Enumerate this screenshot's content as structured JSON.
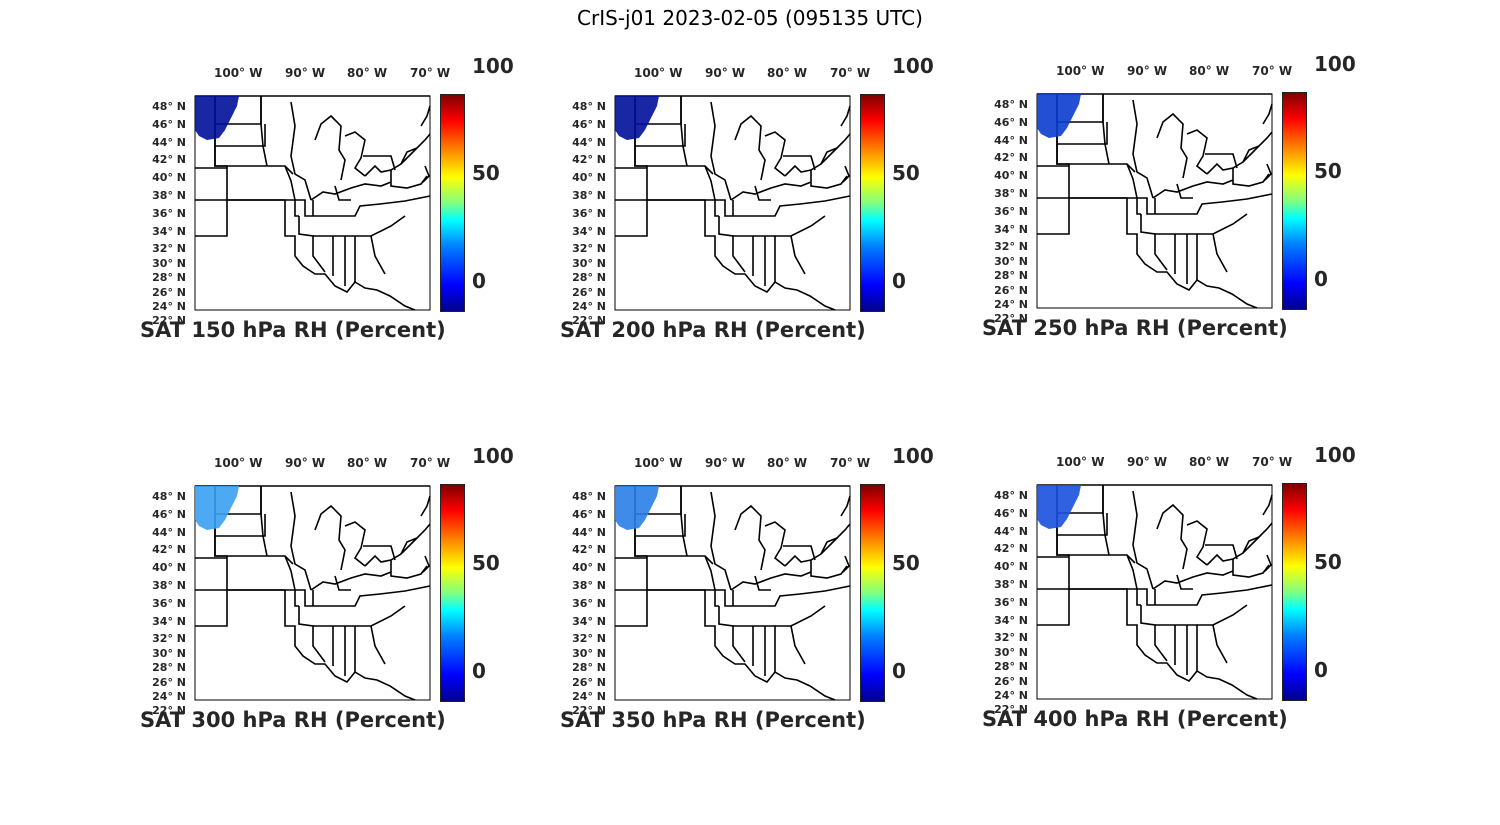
{
  "title": "CrIS-j01 2023-02-05 (095135 UTC)",
  "lon_labels": [
    "100° W",
    "90° W",
    "80° W",
    "70° W"
  ],
  "lat_labels": [
    "48° N",
    "46° N",
    "44° N",
    "42° N",
    "40° N",
    "38° N",
    "36° N",
    "34° N",
    "32° N",
    "30° N",
    "28° N",
    "26° N",
    "24° N",
    "22° N"
  ],
  "colorbar": {
    "min": "0",
    "mid": "50",
    "max": "100",
    "colormap": "jet"
  },
  "panels": [
    {
      "title": "SAT 150 hPa RH (Percent)",
      "data_color": "#00109a"
    },
    {
      "title": "SAT 200 hPa RH (Percent)",
      "data_color": "#00109a"
    },
    {
      "title": "SAT 250 hPa RH (Percent)",
      "data_color": "#0a3ccf"
    },
    {
      "title": "SAT 300 hPa RH (Percent)",
      "data_color": "#3aa0f0"
    },
    {
      "title": "SAT 350 hPa RH (Percent)",
      "data_color": "#2a7ee8"
    },
    {
      "title": "SAT 400 hPa RH (Percent)",
      "data_color": "#1850dd"
    }
  ]
}
